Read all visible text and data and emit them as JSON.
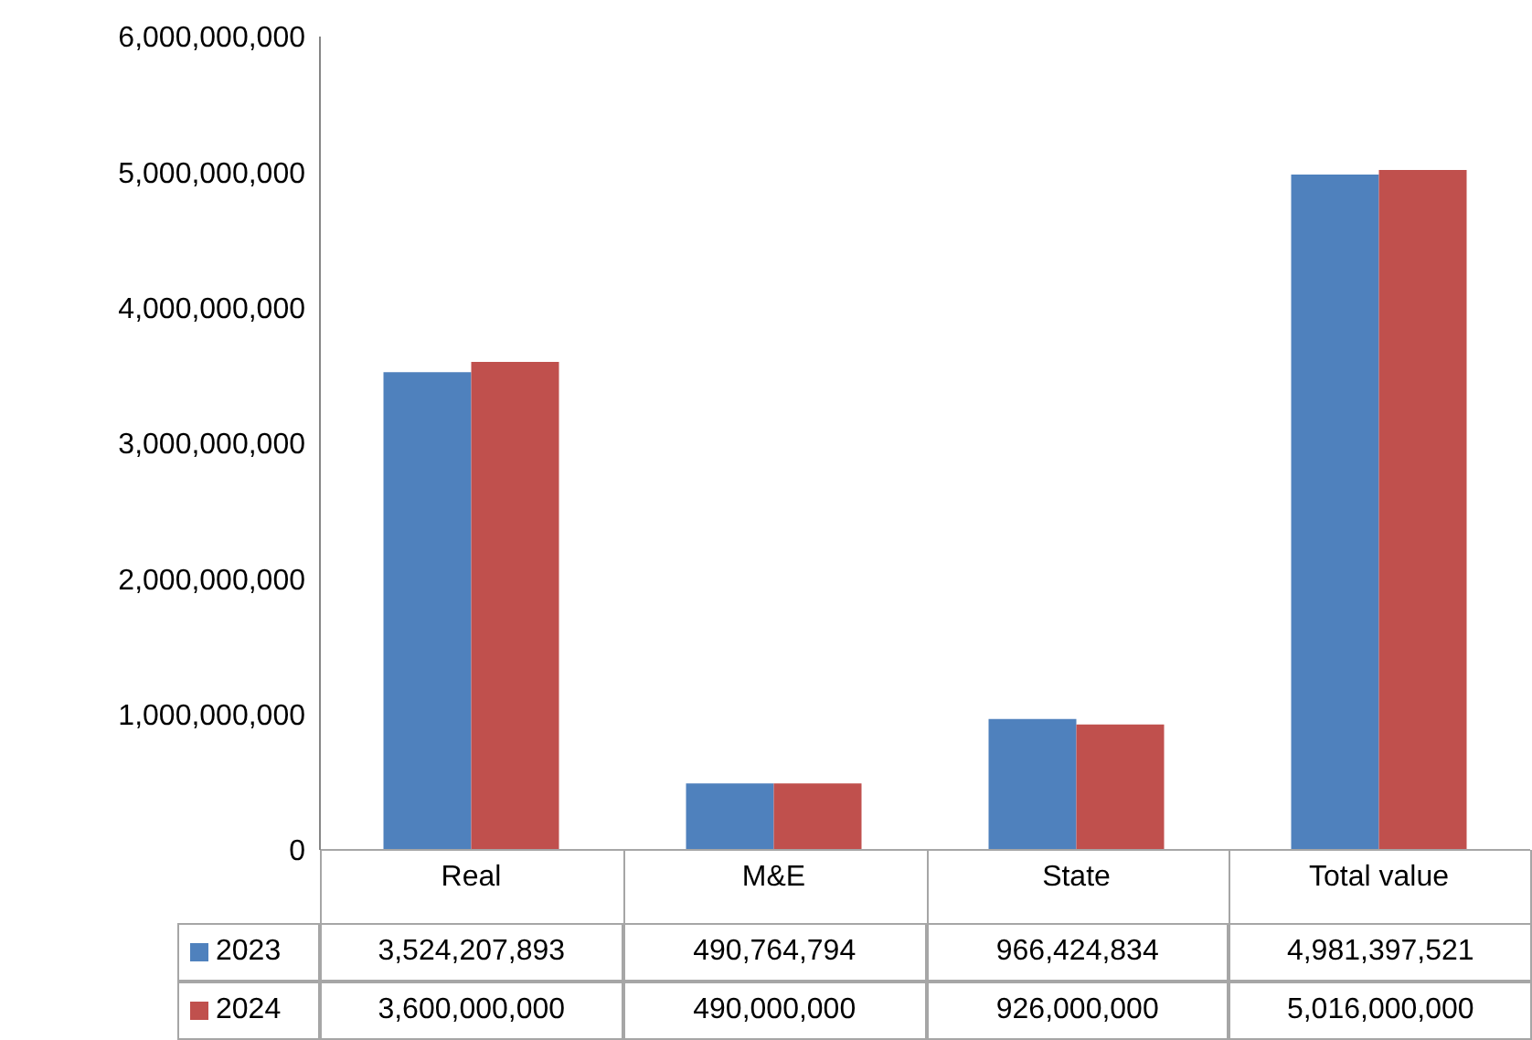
{
  "chart_data": {
    "type": "bar",
    "categories": [
      "Real",
      "M&E",
      "State",
      "Total value"
    ],
    "series": [
      {
        "name": "2023",
        "color": "#4f81bd",
        "values": [
          3524207893,
          490764794,
          966424834,
          4981397521
        ],
        "value_labels": [
          "3,524,207,893",
          "490,764,794",
          "966,424,834",
          "4,981,397,521"
        ]
      },
      {
        "name": "2024",
        "color": "#c0504d",
        "values": [
          3600000000,
          490000000,
          926000000,
          5016000000
        ],
        "value_labels": [
          "3,600,000,000",
          "490,000,000",
          "926,000,000",
          "5,016,000,000"
        ]
      }
    ],
    "ylim": [
      0,
      6000000000
    ],
    "yticks": [
      0,
      {
        "value": 1000000000,
        "label": "1,000,000,000"
      },
      {
        "value": 2000000000,
        "label": "2,000,000,000"
      },
      {
        "value": 3000000000,
        "label": "3,000,000,000"
      },
      {
        "value": 4000000000,
        "label": "4,000,000,000"
      },
      {
        "value": 5000000000,
        "label": "5,000,000,000"
      },
      {
        "value": 6000000000,
        "label": "6,000,000,000"
      }
    ],
    "grid": false,
    "legend": "bottom"
  }
}
